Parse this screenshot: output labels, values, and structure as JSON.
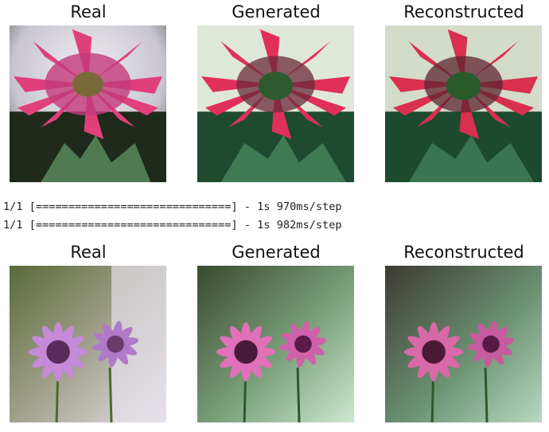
{
  "row1": {
    "titles": [
      "Real",
      "Generated",
      "Reconstructed"
    ],
    "images": [
      {
        "subject": "pink spiky daisy-like flower against dark foliage",
        "icon": "flower-photo"
      },
      {
        "subject": "greenish-tinted generated version of pink flower",
        "icon": "flower-photo"
      },
      {
        "subject": "reconstructed pink flower with green cast",
        "icon": "flower-photo"
      }
    ]
  },
  "log": {
    "line1": "1/1 [==============================] - 1s 970ms/step",
    "line2": "1/1 [==============================] - 1s 982ms/step"
  },
  "row2": {
    "titles": [
      "Real",
      "Generated",
      "Reconstructed"
    ],
    "images": [
      {
        "subject": "light purple daisies on blurred background",
        "icon": "flower-photo"
      },
      {
        "subject": "pink-magenta generated daisies on greenish background",
        "icon": "flower-photo"
      },
      {
        "subject": "reconstructed pink daisies with green haze",
        "icon": "flower-photo"
      }
    ]
  }
}
